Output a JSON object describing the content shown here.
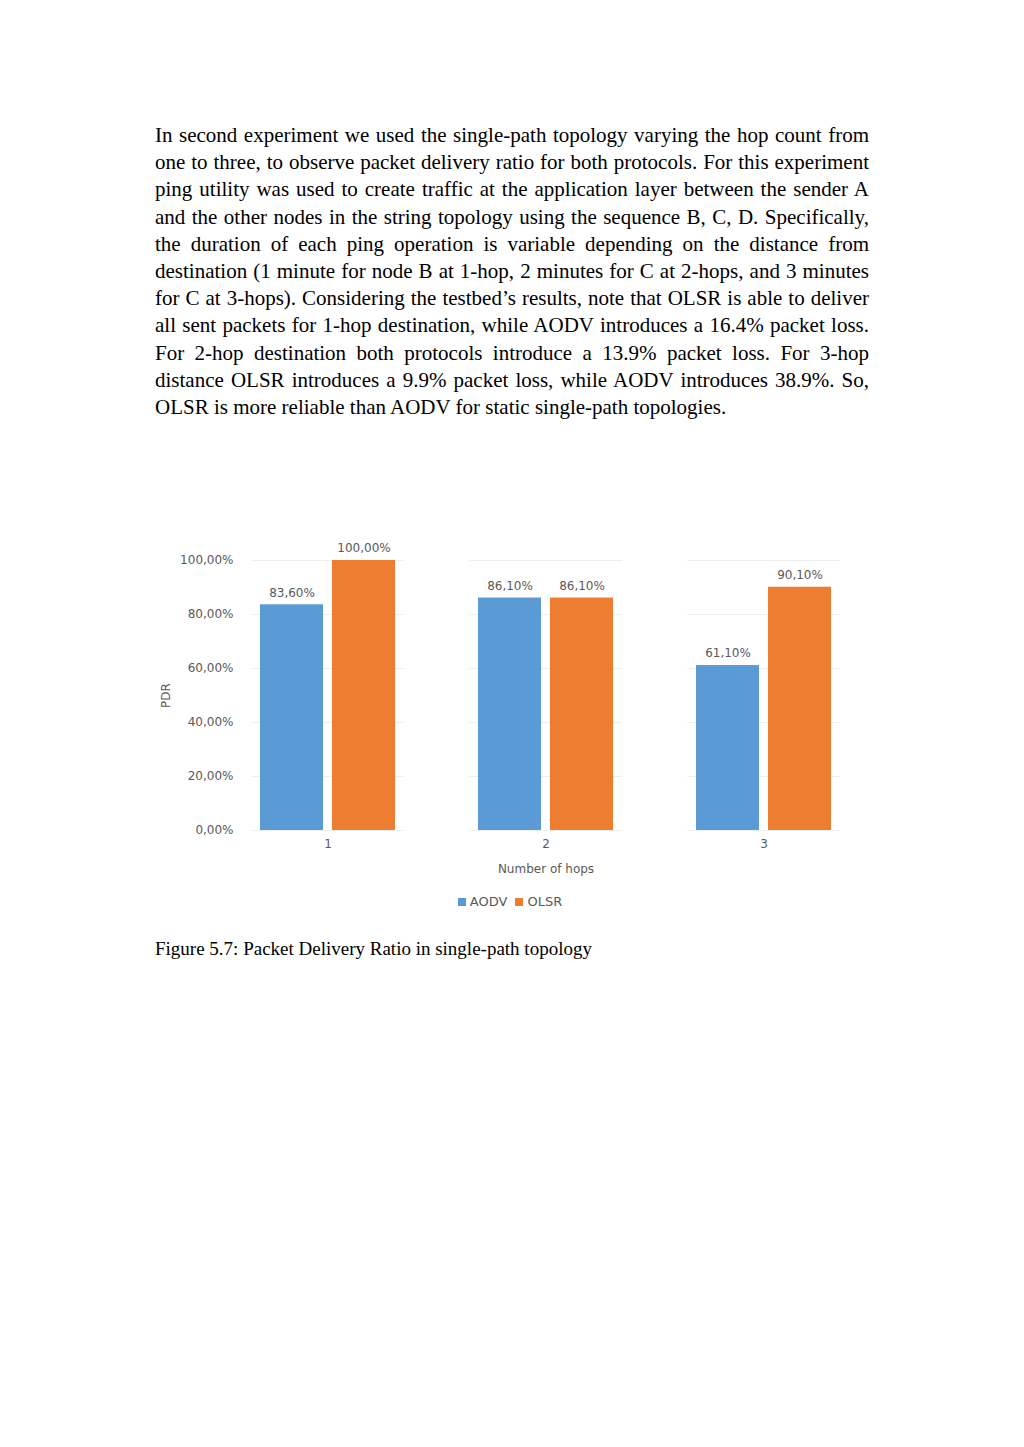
{
  "paragraph": "In second experiment we used the single-path topology varying the hop count from one to three, to observe packet delivery ratio for both protocols. For this experiment ping utility was used to create traffic at the application layer between the sender A and the other nodes in the string topology using the sequence B, C, D. Specifically, the duration of each ping operation is variable depending on the distance from destination (1 minute for node B at 1-hop, 2 minutes for C at 2-hops, and 3 minutes for C at 3-hops). Considering the testbed’s results, note that OLSR is able to deliver all sent packets for 1-hop destination, while AODV introduces a 16.4% packet loss. For 2-hop destination both protocols introduce a 13.9% packet loss. For 3-hop distance OLSR introduces a 9.9% packet loss, while AODV introduces 38.9%. So, OLSR is more reliable than AODV for static single-path topologies.",
  "chart_data": {
    "type": "bar",
    "x_label": "Number of hops",
    "y_label": "PDR",
    "categories": [
      "1",
      "2",
      "3"
    ],
    "series": [
      {
        "name": "AODV",
        "color": "#5b9bd5",
        "values": [
          83.6,
          86.1,
          61.1
        ],
        "value_labels": [
          "83,60%",
          "86,10%",
          "61,10%"
        ]
      },
      {
        "name": "OLSR",
        "color": "#ed7d31",
        "values": [
          100,
          86.1,
          90.1
        ],
        "value_labels": [
          "100,00%",
          "86,10%",
          "90,10%"
        ]
      }
    ],
    "ylim": [
      0,
      100
    ],
    "yticks": [
      {
        "value": 0,
        "label": "0,00%"
      },
      {
        "value": 20,
        "label": "20,00%"
      },
      {
        "value": 40,
        "label": "40,00%"
      },
      {
        "value": 60,
        "label": "60,00%"
      },
      {
        "value": 80,
        "label": "80,00%"
      },
      {
        "value": 100,
        "label": "100,00%"
      }
    ],
    "grid": true,
    "data_labels": true,
    "legend": "bottom"
  },
  "caption": "Figure 5.7: Packet Delivery Ratio in single-path topology"
}
